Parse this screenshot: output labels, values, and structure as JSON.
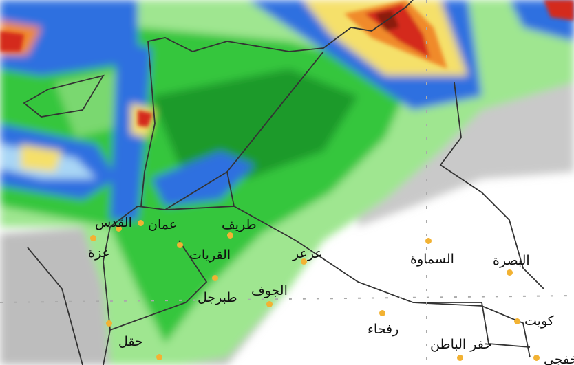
{
  "map": {
    "colors": {
      "land_white": "#ffffff",
      "light_gray": "#d9d9d9",
      "gray": "#a9a9a9",
      "light_green": "#a8eb9a",
      "green": "#2fc43a",
      "dark_green": "#1e9a2a",
      "blue": "#2f6fe0",
      "light_blue": "#a9d6f5",
      "yellow": "#f5e06a",
      "orange": "#f08a2a",
      "red": "#d42a1a",
      "dark_red": "#8a1a10",
      "city_dot": "#f2b233",
      "border": "#333333"
    },
    "cities": [
      {
        "name": "القدس"
      },
      {
        "name": "عمان"
      },
      {
        "name": "غزة"
      },
      {
        "name": "طريف"
      },
      {
        "name": "القريات"
      },
      {
        "name": "عرعر"
      },
      {
        "name": "الجوف"
      },
      {
        "name": "طبرجل"
      },
      {
        "name": "السماوة"
      },
      {
        "name": "البصرة"
      },
      {
        "name": "كويت"
      },
      {
        "name": "رفحاء"
      },
      {
        "name": "حفر الباطن"
      },
      {
        "name": "حقل"
      },
      {
        "name": "خفجي"
      }
    ]
  }
}
